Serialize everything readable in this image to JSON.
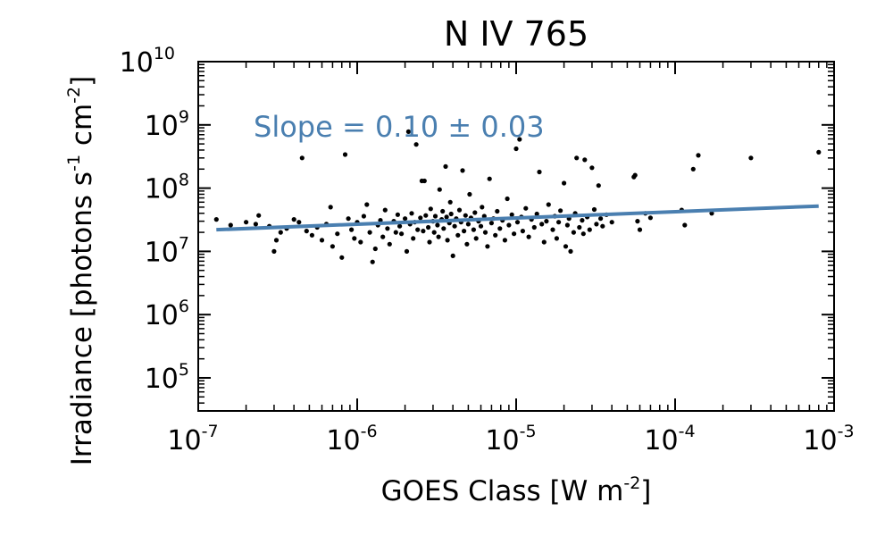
{
  "chart_data": {
    "type": "scatter",
    "title": "N IV 765",
    "xlabel": {
      "main": "GOES Class [W m",
      "sup": "-2",
      "tail": "]"
    },
    "ylabel": {
      "main": "Irradiance [photons s",
      "sup1": "-1",
      "mid": " cm",
      "sup2": "-2",
      "tail": "]"
    },
    "x_scale": "log",
    "y_scale": "log",
    "xlim": [
      1e-07,
      0.001
    ],
    "ylim": [
      30000,
      10000000000.0
    ],
    "x_ticks": [
      {
        "value": 1e-07,
        "base": "10",
        "exp": "-7"
      },
      {
        "value": 1e-06,
        "base": "10",
        "exp": "-6"
      },
      {
        "value": 1e-05,
        "base": "10",
        "exp": "-5"
      },
      {
        "value": 0.0001,
        "base": "10",
        "exp": "-4"
      },
      {
        "value": 0.001,
        "base": "10",
        "exp": "-3"
      }
    ],
    "y_ticks": [
      {
        "value": 100000.0,
        "base": "10",
        "exp": "5"
      },
      {
        "value": 1000000.0,
        "base": "10",
        "exp": "6"
      },
      {
        "value": 10000000.0,
        "base": "10",
        "exp": "7"
      },
      {
        "value": 100000000.0,
        "base": "10",
        "exp": "8"
      },
      {
        "value": 1000000000.0,
        "base": "10",
        "exp": "9"
      },
      {
        "value": 10000000000.0,
        "base": "10",
        "exp": "10"
      }
    ],
    "annotation": "Slope = 0.10 ± 0.03",
    "fit_line": {
      "x": [
        1.3e-07,
        0.0008
      ],
      "y": [
        22000000.0,
        52000000.0
      ],
      "color": "#4a7fb0"
    },
    "point_color": "#000000",
    "points": [
      [
        1.3e-07,
        32000000.0
      ],
      [
        1.6e-07,
        26000000.0
      ],
      [
        2e-07,
        29000000.0
      ],
      [
        2.3e-07,
        27000000.0
      ],
      [
        2.4e-07,
        37000000.0
      ],
      [
        2.8e-07,
        25000000.0
      ],
      [
        3e-07,
        10000000.0
      ],
      [
        3.1e-07,
        15000000.0
      ],
      [
        3.3e-07,
        20000000.0
      ],
      [
        3.6e-07,
        23000000.0
      ],
      [
        4e-07,
        32000000.0
      ],
      [
        4.3e-07,
        29000000.0
      ],
      [
        4.5e-07,
        300000000.0
      ],
      [
        4.8e-07,
        21000000.0
      ],
      [
        5.2e-07,
        18000000.0
      ],
      [
        5.6e-07,
        24000000.0
      ],
      [
        6e-07,
        15000000.0
      ],
      [
        6.4e-07,
        27000000.0
      ],
      [
        6.8e-07,
        50000000.0
      ],
      [
        7e-07,
        12000000.0
      ],
      [
        7.5e-07,
        19000000.0
      ],
      [
        8e-07,
        8000000.0
      ],
      [
        8.4e-07,
        340000000.0
      ],
      [
        8.8e-07,
        33000000.0
      ],
      [
        9.2e-07,
        22000000.0
      ],
      [
        9.6e-07,
        16000000.0
      ],
      [
        1e-06,
        29000000.0
      ],
      [
        1.05e-06,
        14000000.0
      ],
      [
        1.1e-06,
        36000000.0
      ],
      [
        1.15e-06,
        55000000.0
      ],
      [
        1.2e-06,
        20000000.0
      ],
      [
        1.25e-06,
        6800000.0
      ],
      [
        1.3e-06,
        11000000.0
      ],
      [
        1.35e-06,
        26000000.0
      ],
      [
        1.4e-06,
        31000000.0
      ],
      [
        1.45e-06,
        17000000.0
      ],
      [
        1.5e-06,
        45000000.0
      ],
      [
        1.55e-06,
        23000000.0
      ],
      [
        1.6e-06,
        13000000.0
      ],
      [
        1.7e-06,
        30000000.0
      ],
      [
        1.75e-06,
        20000000.0
      ],
      [
        1.8e-06,
        38000000.0
      ],
      [
        1.85e-06,
        25000000.0
      ],
      [
        1.9e-06,
        19000000.0
      ],
      [
        2e-06,
        33000000.0
      ],
      [
        2.05e-06,
        10000000.0
      ],
      [
        2.1e-06,
        780000000.0
      ],
      [
        2.15e-06,
        27000000.0
      ],
      [
        2.2e-06,
        40000000.0
      ],
      [
        2.25e-06,
        16000000.0
      ],
      [
        2.3e-06,
        29000000.0
      ],
      [
        2.35e-06,
        490000000.0
      ],
      [
        2.4e-06,
        22000000.0
      ],
      [
        2.5e-06,
        34000000.0
      ],
      [
        2.55e-06,
        130000000.0
      ],
      [
        2.6e-06,
        21000000.0
      ],
      [
        2.65e-06,
        130000000.0
      ],
      [
        2.7e-06,
        37000000.0
      ],
      [
        2.8e-06,
        24000000.0
      ],
      [
        2.85e-06,
        14000000.0
      ],
      [
        2.9e-06,
        47000000.0
      ],
      [
        3e-06,
        30000000.0
      ],
      [
        3.05e-06,
        20000000.0
      ],
      [
        3.1e-06,
        36000000.0
      ],
      [
        3.2e-06,
        26000000.0
      ],
      [
        3.25e-06,
        17000000.0
      ],
      [
        3.3e-06,
        95000000.0
      ],
      [
        3.4e-06,
        32000000.0
      ],
      [
        3.45e-06,
        43000000.0
      ],
      [
        3.5e-06,
        23000000.0
      ],
      [
        3.6e-06,
        220000000.0
      ],
      [
        3.65e-06,
        35000000.0
      ],
      [
        3.7e-06,
        15000000.0
      ],
      [
        3.8e-06,
        28000000.0
      ],
      [
        3.85e-06,
        60000000.0
      ],
      [
        3.9e-06,
        39000000.0
      ],
      [
        4e-06,
        8500000.0
      ],
      [
        4.1e-06,
        25000000.0
      ],
      [
        4.2e-06,
        33000000.0
      ],
      [
        4.3e-06,
        18000000.0
      ],
      [
        4.4e-06,
        45000000.0
      ],
      [
        4.5e-06,
        29000000.0
      ],
      [
        4.6e-06,
        190000000.0
      ],
      [
        4.7e-06,
        21000000.0
      ],
      [
        4.8e-06,
        37000000.0
      ],
      [
        4.9e-06,
        13000000.0
      ],
      [
        5e-06,
        27000000.0
      ],
      [
        5.1e-06,
        80000000.0
      ],
      [
        5.2e-06,
        34000000.0
      ],
      [
        5.4e-06,
        22000000.0
      ],
      [
        5.5e-06,
        41000000.0
      ],
      [
        5.6e-06,
        16000000.0
      ],
      [
        5.8e-06,
        30000000.0
      ],
      [
        6e-06,
        25000000.0
      ],
      [
        6.1e-06,
        50000000.0
      ],
      [
        6.3e-06,
        36000000.0
      ],
      [
        6.4e-06,
        20000000.0
      ],
      [
        6.6e-06,
        12000000.0
      ],
      [
        6.8e-06,
        140000000.0
      ],
      [
        7e-06,
        28000000.0
      ],
      [
        7.2e-06,
        33000000.0
      ],
      [
        7.4e-06,
        18000000.0
      ],
      [
        7.6e-06,
        43000000.0
      ],
      [
        7.9e-06,
        23000000.0
      ],
      [
        8.2e-06,
        31000000.0
      ],
      [
        8.5e-06,
        15000000.0
      ],
      [
        8.8e-06,
        68000000.0
      ],
      [
        9e-06,
        26000000.0
      ],
      [
        9.4e-06,
        38000000.0
      ],
      [
        9.7e-06,
        19000000.0
      ],
      [
        1e-05,
        420000000.0
      ],
      [
        1.02e-05,
        29000000.0
      ],
      [
        1.05e-05,
        590000000.0
      ],
      [
        1.08e-05,
        35000000.0
      ],
      [
        1.1e-05,
        21000000.0
      ],
      [
        1.15e-05,
        48000000.0
      ],
      [
        1.2e-05,
        17000000.0
      ],
      [
        1.25e-05,
        32000000.0
      ],
      [
        1.3e-05,
        24000000.0
      ],
      [
        1.35e-05,
        39000000.0
      ],
      [
        1.4e-05,
        180000000.0
      ],
      [
        1.45e-05,
        27000000.0
      ],
      [
        1.5e-05,
        14000000.0
      ],
      [
        1.55e-05,
        30000000.0
      ],
      [
        1.6e-05,
        55000000.0
      ],
      [
        1.7e-05,
        22000000.0
      ],
      [
        1.75e-05,
        36000000.0
      ],
      [
        1.8e-05,
        16000000.0
      ],
      [
        1.85e-05,
        29000000.0
      ],
      [
        1.9e-05,
        44000000.0
      ],
      [
        2e-05,
        120000000.0
      ],
      [
        2.05e-05,
        12000000.0
      ],
      [
        2.1e-05,
        26000000.0
      ],
      [
        2.15e-05,
        33000000.0
      ],
      [
        2.2e-05,
        10000000.0
      ],
      [
        2.3e-05,
        20000000.0
      ],
      [
        2.35e-05,
        40000000.0
      ],
      [
        2.4e-05,
        300000000.0
      ],
      [
        2.5e-05,
        24000000.0
      ],
      [
        2.6e-05,
        31000000.0
      ],
      [
        2.65e-05,
        19000000.0
      ],
      [
        2.7e-05,
        280000000.0
      ],
      [
        2.8e-05,
        35000000.0
      ],
      [
        2.9e-05,
        22000000.0
      ],
      [
        3e-05,
        210000000.0
      ],
      [
        3.1e-05,
        46000000.0
      ],
      [
        3.2e-05,
        27000000.0
      ],
      [
        3.3e-05,
        110000000.0
      ],
      [
        3.4e-05,
        33000000.0
      ],
      [
        3.5e-05,
        25000000.0
      ],
      [
        3.7e-05,
        38000000.0
      ],
      [
        4e-05,
        29000000.0
      ],
      [
        5.5e-05,
        150000000.0
      ],
      [
        5.6e-05,
        160000000.0
      ],
      [
        5.8e-05,
        30000000.0
      ],
      [
        6e-05,
        22000000.0
      ],
      [
        6.5e-05,
        40000000.0
      ],
      [
        7e-05,
        34000000.0
      ],
      [
        0.00011,
        45000000.0
      ],
      [
        0.000115,
        26000000.0
      ],
      [
        0.00013,
        200000000.0
      ],
      [
        0.00014,
        330000000.0
      ],
      [
        0.00017,
        40000000.0
      ],
      [
        0.0003,
        300000000.0
      ],
      [
        0.0008,
        370000000.0
      ]
    ]
  }
}
